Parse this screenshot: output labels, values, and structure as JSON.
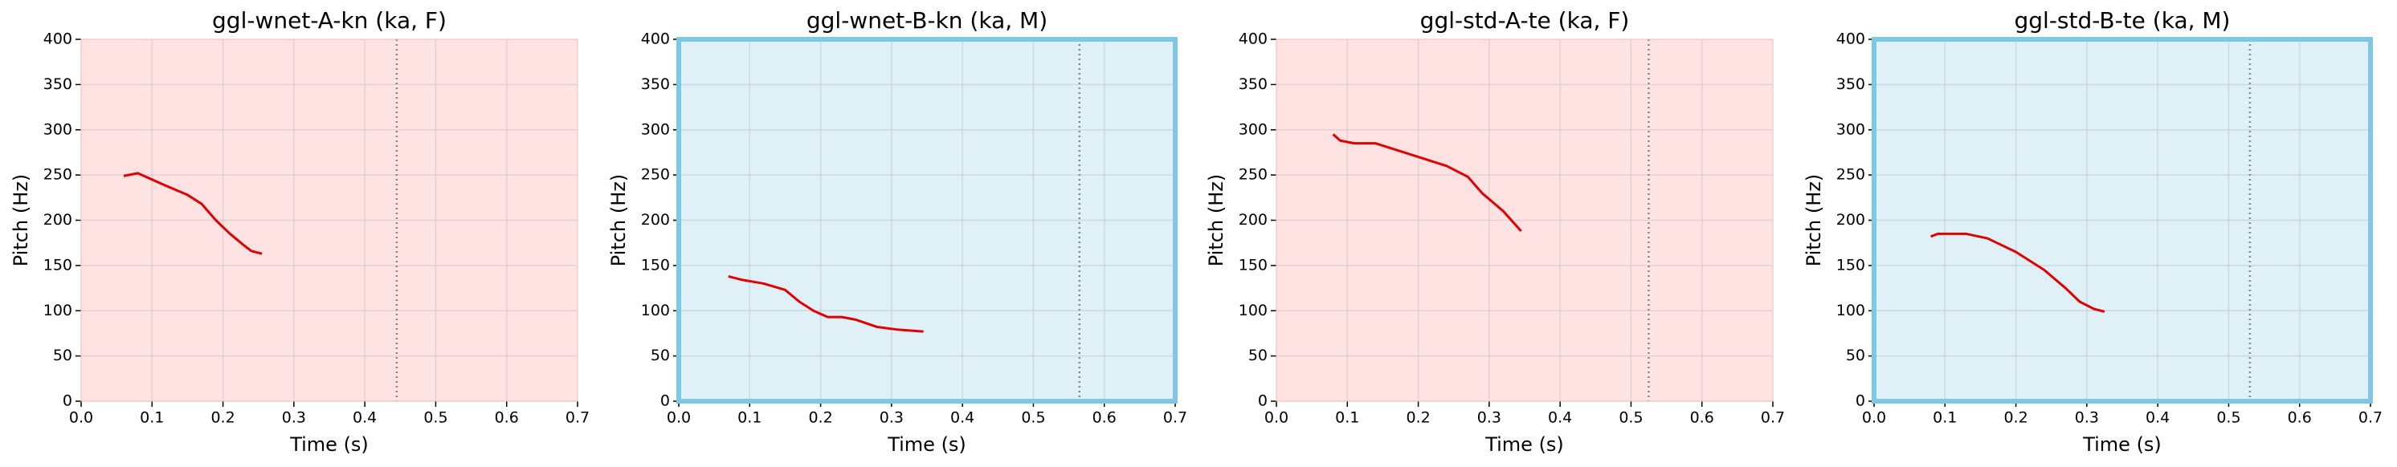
{
  "chart_data": [
    {
      "type": "line",
      "title": "ggl-wnet-A-kn (ka, F)",
      "xlabel": "Time (s)",
      "ylabel": "Pitch (Hz)",
      "x": [
        0.06,
        0.08,
        0.1,
        0.12,
        0.15,
        0.17,
        0.19,
        0.21,
        0.23,
        0.24,
        0.255
      ],
      "series": [
        {
          "color": "#e00000",
          "values": [
            249,
            252,
            245,
            238,
            228,
            218,
            200,
            185,
            172,
            166,
            163
          ]
        }
      ],
      "vline": 0.445,
      "background": "#ffe3e3",
      "frame_color": "#f2c8c8",
      "frame_width": 1,
      "xlim": [
        0,
        0.7
      ],
      "ylim": [
        0,
        400
      ],
      "xticks": [
        {
          "value": 0,
          "label": "0.0"
        },
        0.1,
        0.2,
        0.3,
        0.4,
        0.5,
        0.6,
        0.7
      ],
      "yticks": [
        0,
        50,
        100,
        150,
        200,
        250,
        300,
        350,
        400
      ],
      "grid": true
    },
    {
      "type": "line",
      "title": "ggl-wnet-B-kn (ka, M)",
      "xlabel": "Time (s)",
      "ylabel": "Pitch (Hz)",
      "x": [
        0.07,
        0.09,
        0.12,
        0.15,
        0.17,
        0.19,
        0.21,
        0.23,
        0.25,
        0.28,
        0.31,
        0.345
      ],
      "series": [
        {
          "color": "#e00000",
          "values": [
            138,
            134,
            130,
            123,
            110,
            100,
            93,
            93,
            90,
            82,
            79,
            77
          ]
        }
      ],
      "vline": 0.565,
      "background": "#dff0f7",
      "frame_color": "#7ec8e3",
      "frame_width": 6,
      "xlim": [
        0,
        0.7
      ],
      "ylim": [
        0,
        400
      ],
      "xticks": [
        {
          "value": 0,
          "label": "0.0"
        },
        0.1,
        0.2,
        0.3,
        0.4,
        0.5,
        0.6,
        0.7
      ],
      "yticks": [
        0,
        50,
        100,
        150,
        200,
        250,
        300,
        350,
        400
      ],
      "grid": true
    },
    {
      "type": "line",
      "title": "ggl-std-A-te (ka, F)",
      "xlabel": "Time (s)",
      "ylabel": "Pitch (Hz)",
      "x": [
        0.08,
        0.09,
        0.11,
        0.14,
        0.16,
        0.2,
        0.24,
        0.27,
        0.29,
        0.32,
        0.345
      ],
      "series": [
        {
          "color": "#e00000",
          "values": [
            295,
            288,
            285,
            285,
            280,
            270,
            260,
            248,
            230,
            210,
            188
          ]
        }
      ],
      "vline": 0.525,
      "background": "#ffe3e3",
      "frame_color": "#f2c8c8",
      "frame_width": 1,
      "xlim": [
        0,
        0.7
      ],
      "ylim": [
        0,
        400
      ],
      "xticks": [
        {
          "value": 0,
          "label": "0.0"
        },
        0.1,
        0.2,
        0.3,
        0.4,
        0.5,
        0.6,
        0.7
      ],
      "yticks": [
        0,
        50,
        100,
        150,
        200,
        250,
        300,
        350,
        400
      ],
      "grid": true
    },
    {
      "type": "line",
      "title": "ggl-std-B-te (ka, M)",
      "xlabel": "Time (s)",
      "ylabel": "Pitch (Hz)",
      "x": [
        0.08,
        0.09,
        0.13,
        0.16,
        0.2,
        0.24,
        0.27,
        0.29,
        0.31,
        0.325
      ],
      "series": [
        {
          "color": "#e00000",
          "values": [
            182,
            185,
            185,
            180,
            165,
            145,
            125,
            110,
            102,
            99
          ]
        }
      ],
      "vline": 0.53,
      "background": "#dff0f7",
      "frame_color": "#7ec8e3",
      "frame_width": 6,
      "xlim": [
        0,
        0.7
      ],
      "ylim": [
        0,
        400
      ],
      "xticks": [
        {
          "value": 0,
          "label": "0.0"
        },
        0.1,
        0.2,
        0.3,
        0.4,
        0.5,
        0.6,
        0.7
      ],
      "yticks": [
        0,
        50,
        100,
        150,
        200,
        250,
        300,
        350,
        400
      ],
      "grid": true
    }
  ]
}
